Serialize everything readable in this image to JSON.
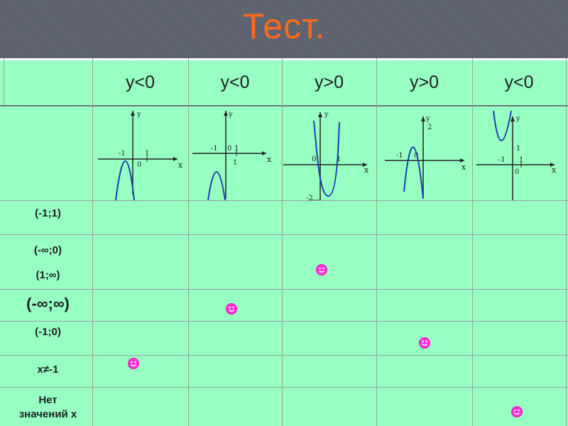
{
  "title": "Тест.",
  "header": {
    "columns": [
      "y<0",
      "y<0",
      "y>0",
      "y>0",
      "y<0"
    ]
  },
  "graphs": [
    {
      "labels": {
        "y": "y",
        "x": "x",
        "m1": "-1",
        "p1": "1",
        "o": "0"
      }
    },
    {
      "labels": {
        "y": "y",
        "x": "x",
        "m1": "-1",
        "o": "0",
        "p1": "1",
        "one": "1"
      }
    },
    {
      "labels": {
        "y": "y",
        "x": "x",
        "o": "0",
        "p1": "1",
        "m2": "-2"
      }
    },
    {
      "labels": {
        "y": "y",
        "x": "x",
        "m1": "-1",
        "o": "0",
        "two": "2"
      }
    },
    {
      "labels": {
        "y": "y",
        "x": "x",
        "m1": "-1",
        "p1": "1",
        "o": "0",
        "one": "1"
      }
    }
  ],
  "rows": [
    {
      "label": "(-1;1)"
    },
    {
      "label_a": "(-∞;0)",
      "label_b": "(1;∞)"
    },
    {
      "label": "(-∞;∞)"
    },
    {
      "label": "(-1;0)"
    },
    {
      "label": "x≠-1"
    },
    {
      "label_a": "Нет",
      "label_b": "значений x"
    }
  ],
  "marks": {
    "color": "#ff33d6",
    "icon": "smiley-icon"
  }
}
